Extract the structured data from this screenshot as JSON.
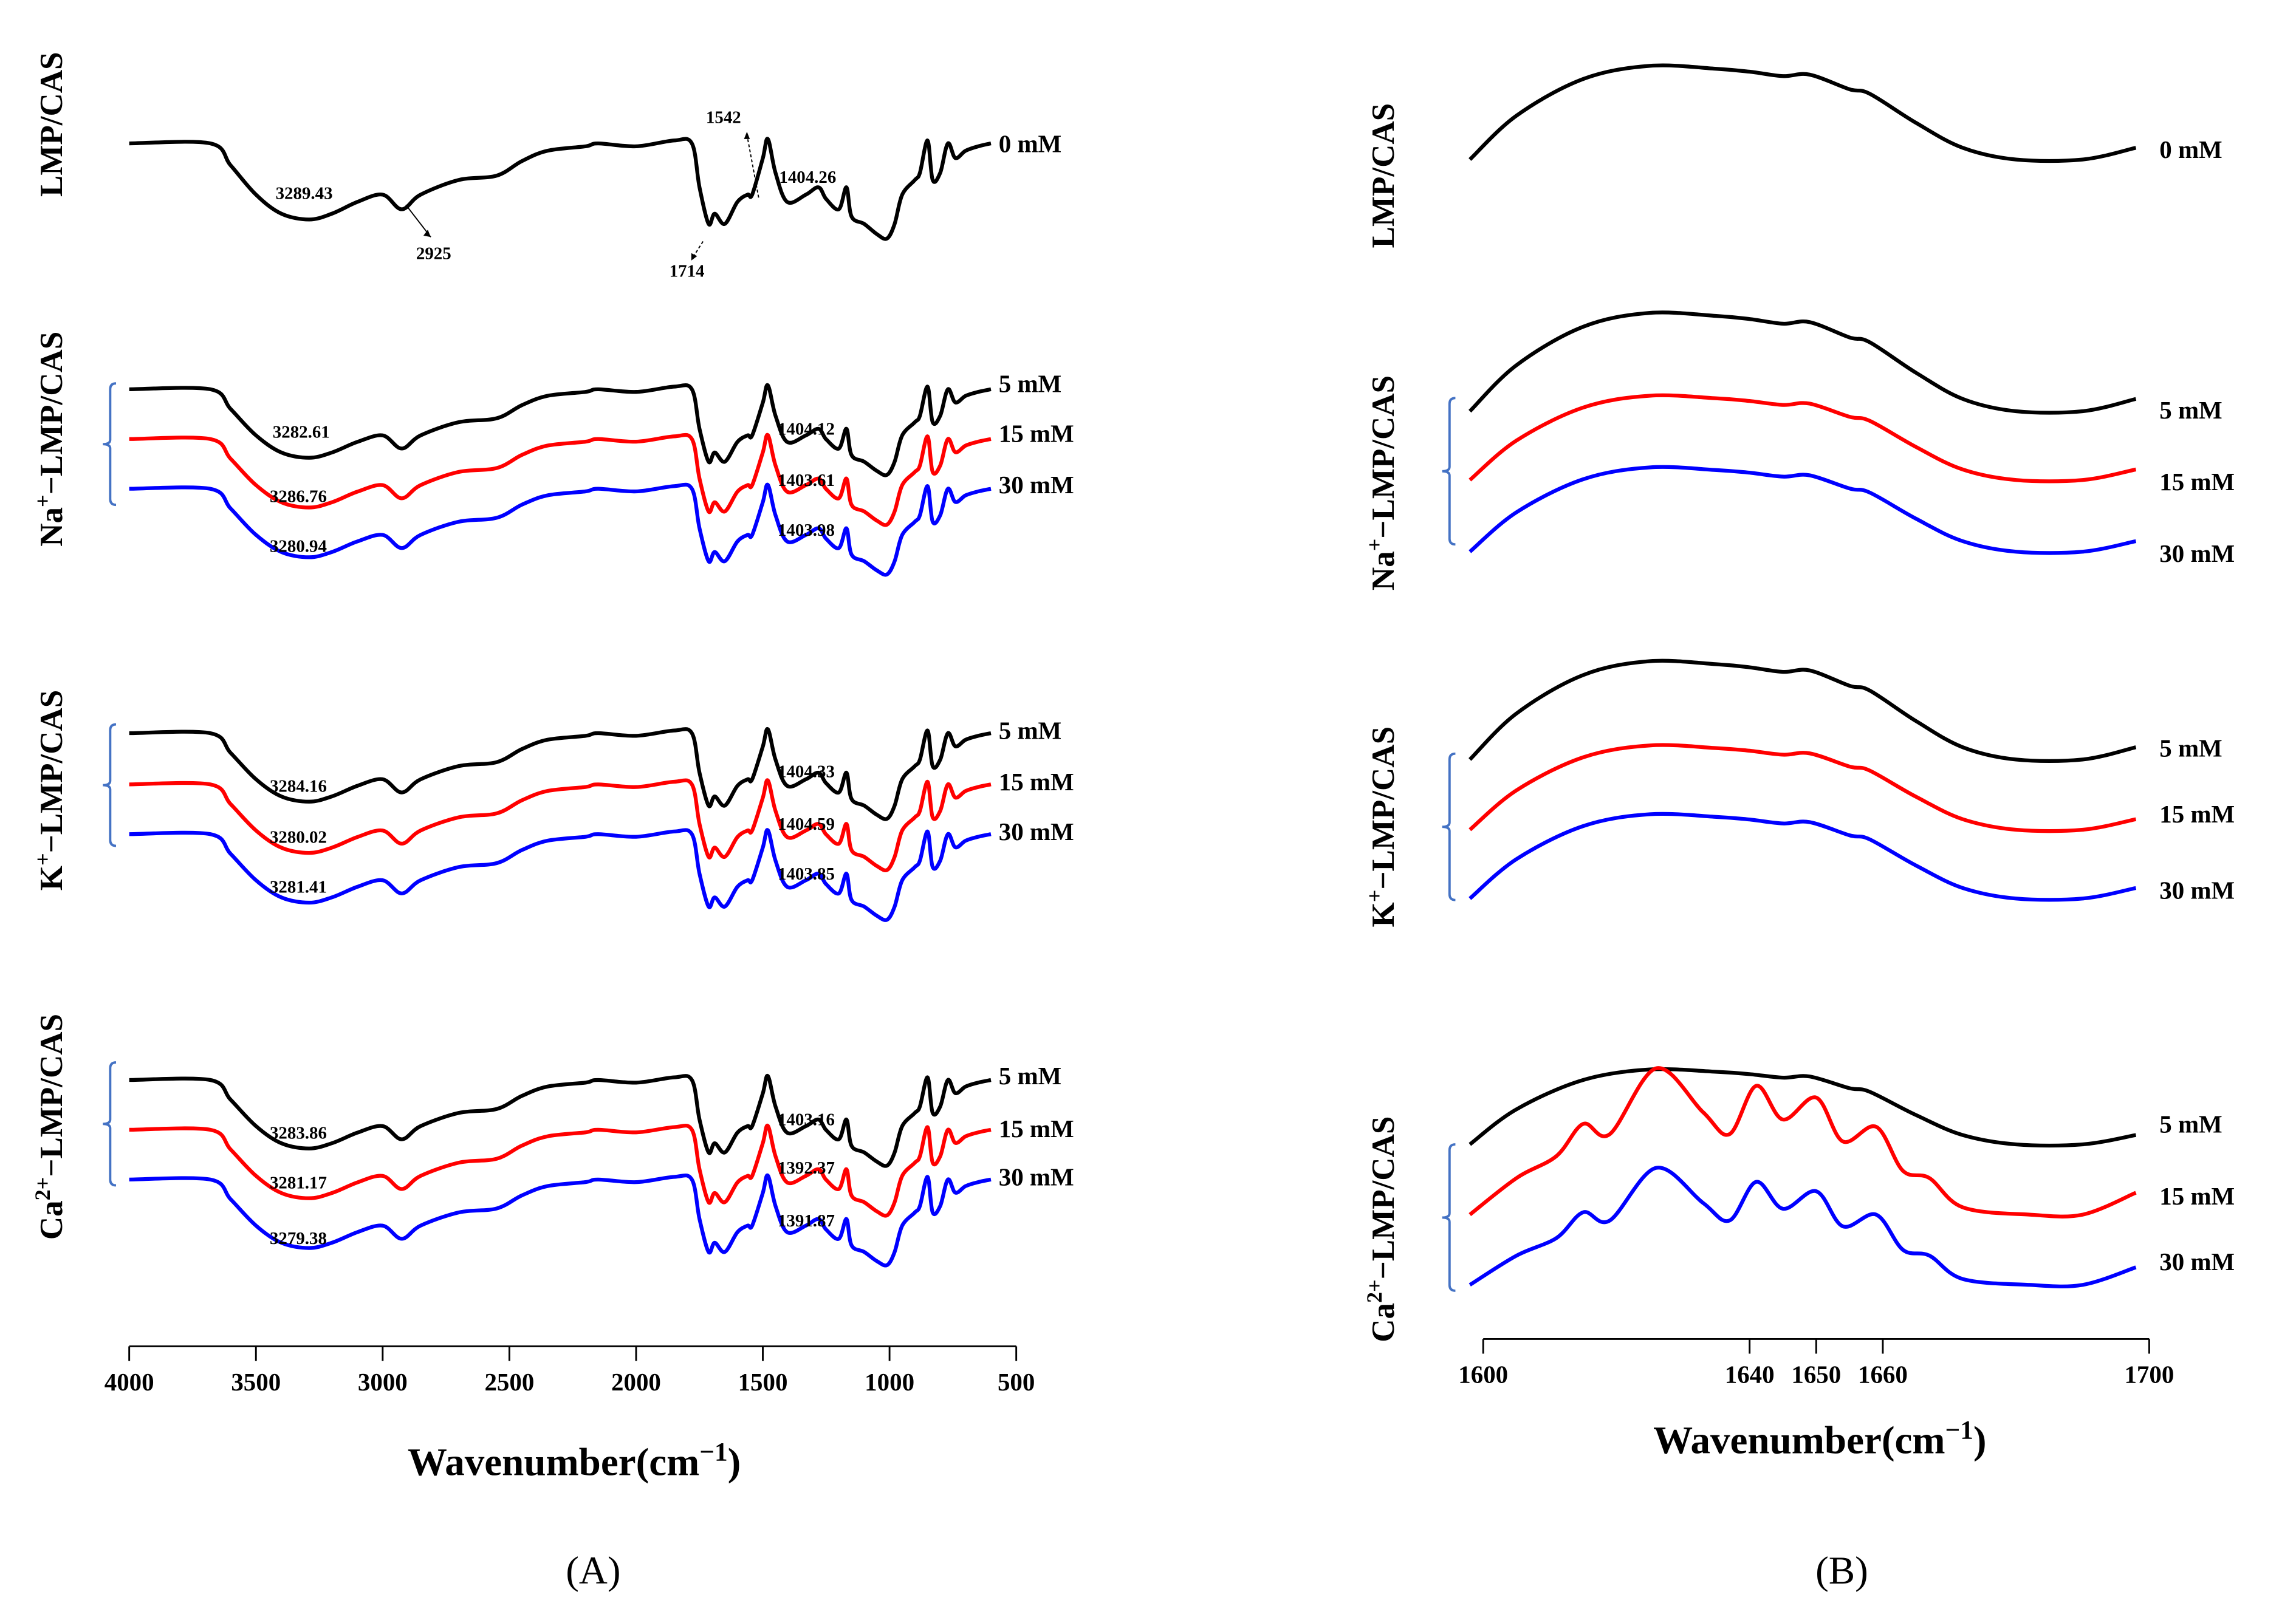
{
  "chart_data": [
    {
      "type": "line",
      "panel_label": "(A)",
      "xlabel": {
        "base": "Wavenumber(cm",
        "sup": "−1",
        "tail": ")"
      },
      "xlim": [
        4000,
        500
      ],
      "xticks": [
        4000,
        3500,
        3000,
        2500,
        2000,
        1500,
        1000,
        500
      ],
      "y_units": "transmittance (arbitrary, offset stacked)",
      "profile_x": [
        4000,
        3680,
        3600,
        3500,
        3400,
        3290,
        3200,
        3100,
        3000,
        2925,
        2850,
        2700,
        2550,
        2450,
        2350,
        2200,
        2150,
        2000,
        1850,
        1780,
        1750,
        1714,
        1690,
        1650,
        1600,
        1560,
        1542,
        1500,
        1480,
        1450,
        1404,
        1330,
        1280,
        1250,
        1200,
        1170,
        1150,
        1100,
        1050,
        1010,
        980,
        950,
        900,
        880,
        850,
        830,
        800,
        770,
        740,
        700,
        650,
        600
      ],
      "profile_y": [
        0,
        0,
        -15,
        -35,
        -48,
        -52,
        -48,
        -40,
        -35,
        -45,
        -35,
        -25,
        -22,
        -12,
        -5,
        -2,
        0,
        -2,
        2,
        0,
        -30,
        -55,
        -48,
        -55,
        -40,
        -35,
        -35,
        -10,
        3,
        -20,
        -40,
        -35,
        -30,
        -38,
        -45,
        -30,
        -50,
        -55,
        -62,
        -65,
        -55,
        -35,
        -25,
        -20,
        2,
        -25,
        -20,
        0,
        -10,
        -5,
        -2,
        0
      ],
      "groups": [
        {
          "name": {
            "base": "LMP/CAS",
            "sup": "",
            "rest": ""
          },
          "series": [
            {
              "name": "0 mM",
              "color": "#000000",
              "labels": [
                "3289.43",
                "1404.26"
              ]
            }
          ],
          "annotations": [
            "2925",
            "1542",
            "1714"
          ]
        },
        {
          "name": {
            "base": "Na",
            "sup": "+",
            "rest": "−LMP/CAS"
          },
          "series": [
            {
              "name": "5 mM",
              "color": "#000000",
              "labels": [
                "3282.61",
                "1404.12"
              ]
            },
            {
              "name": "15 mM",
              "color": "#ff0000",
              "labels": [
                "3286.76",
                "1403.61"
              ]
            },
            {
              "name": "30 mM",
              "color": "#0000ff",
              "labels": [
                "3280.94",
                "1403.98"
              ]
            }
          ]
        },
        {
          "name": {
            "base": "K",
            "sup": "+",
            "rest": "−LMP/CAS"
          },
          "series": [
            {
              "name": "5 mM",
              "color": "#000000",
              "labels": [
                "3284.16",
                "1404.33"
              ]
            },
            {
              "name": "15 mM",
              "color": "#ff0000",
              "labels": [
                "3280.02",
                "1404.59"
              ]
            },
            {
              "name": "30 mM",
              "color": "#0000ff",
              "labels": [
                "3281.41",
                "1403.85"
              ]
            }
          ]
        },
        {
          "name": {
            "base": "Ca",
            "sup": "2+",
            "rest": "−LMP/CAS"
          },
          "series": [
            {
              "name": "5 mM",
              "color": "#000000",
              "labels": [
                "3283.86",
                "1403.16"
              ]
            },
            {
              "name": "15 mM",
              "color": "#ff0000",
              "labels": [
                "3281.17",
                "1392.37"
              ]
            },
            {
              "name": "30 mM",
              "color": "#0000ff",
              "labels": [
                "3279.38",
                "1391.87"
              ]
            }
          ]
        }
      ]
    },
    {
      "type": "line",
      "panel_label": "(B)",
      "xlabel": {
        "base": "Wavenumber(cm",
        "sup": "−1",
        "tail": ")"
      },
      "xlim": [
        1600,
        1700
      ],
      "xticks": [
        1600,
        1640,
        1650,
        1660,
        1700
      ],
      "profile_x": [
        1598,
        1605,
        1615,
        1625,
        1635,
        1640,
        1645,
        1649,
        1655,
        1658,
        1665,
        1672,
        1680,
        1690,
        1698
      ],
      "profile_y": [
        0,
        30,
        55,
        64,
        62,
        60,
        57,
        58,
        48,
        45,
        25,
        8,
        0,
        0,
        8
      ],
      "ca_profile_x": [
        1598,
        1605,
        1611,
        1615,
        1619,
        1626,
        1633,
        1637,
        1641,
        1645,
        1650,
        1654,
        1659,
        1663,
        1667,
        1672,
        1682,
        1690,
        1698
      ],
      "ca_profile_y": [
        0,
        25,
        40,
        62,
        55,
        100,
        70,
        55,
        88,
        65,
        80,
        50,
        60,
        30,
        25,
        5,
        0,
        0,
        15
      ],
      "groups": [
        {
          "name": {
            "base": "LMP/CAS",
            "sup": "",
            "rest": ""
          },
          "series": [
            {
              "name": "0 mM",
              "color": "#000000"
            }
          ]
        },
        {
          "name": {
            "base": "Na",
            "sup": "+",
            "rest": "−LMP/CAS"
          },
          "series": [
            {
              "name": "5 mM",
              "color": "#000000"
            },
            {
              "name": "15 mM",
              "color": "#ff0000"
            },
            {
              "name": "30 mM",
              "color": "#0000ff"
            }
          ]
        },
        {
          "name": {
            "base": "K",
            "sup": "+",
            "rest": "−LMP/CAS"
          },
          "series": [
            {
              "name": "5 mM",
              "color": "#000000"
            },
            {
              "name": "15 mM",
              "color": "#ff0000"
            },
            {
              "name": "30 mM",
              "color": "#0000ff"
            }
          ]
        },
        {
          "name": {
            "base": "Ca",
            "sup": "2+",
            "rest": "−LMP/CAS"
          },
          "series": [
            {
              "name": "5 mM",
              "color": "#000000"
            },
            {
              "name": "15 mM",
              "color": "#ff0000"
            },
            {
              "name": "30 mM",
              "color": "#0000ff"
            }
          ]
        }
      ]
    }
  ]
}
